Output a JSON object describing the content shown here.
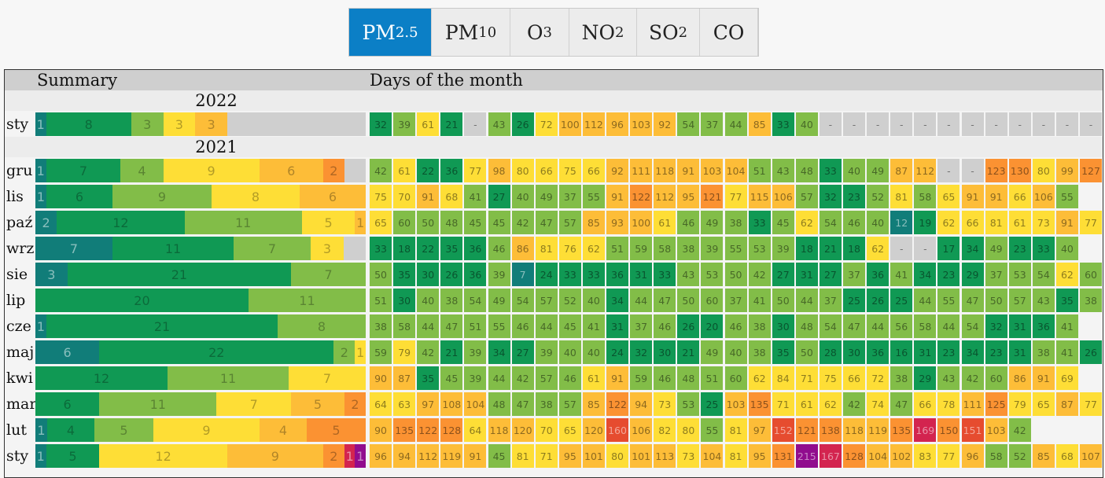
{
  "tabs": [
    {
      "base": "PM",
      "sub": "2.5",
      "active": true
    },
    {
      "base": "PM",
      "sub": "10",
      "active": false
    },
    {
      "base": "O",
      "sub": "3",
      "active": false
    },
    {
      "base": "NO",
      "sub": "2",
      "active": false
    },
    {
      "base": "SO",
      "sub": "2",
      "active": false
    },
    {
      "base": "CO",
      "sub": "",
      "active": false
    }
  ],
  "header": {
    "summary_label": "Summary",
    "days_label": "Days of the month"
  },
  "colors": {
    "very_good": "#117d79",
    "good": "#109954",
    "moderate": "#82bd48",
    "sufficient": "#fede36",
    "bad": "#fdbd38",
    "very_bad": "#fb9232",
    "extreme": "#e64c2f",
    "hazard": "#d3244f",
    "max": "#910c8e",
    "nodata": "#cfcfcf"
  },
  "years": [
    {
      "year": "2022",
      "months": [
        {
          "name": "sty",
          "summary": [
            1,
            8,
            3,
            3,
            3,
            0,
            0,
            0,
            0,
            13
          ],
          "days": [
            32,
            39,
            61,
            21,
            null,
            43,
            26,
            72,
            100,
            112,
            96,
            103,
            92,
            54,
            37,
            44,
            85,
            33,
            40,
            null,
            null,
            null,
            null,
            null,
            null,
            null,
            null,
            null,
            null,
            null,
            null
          ]
        }
      ]
    },
    {
      "year": "2021",
      "months": [
        {
          "name": "gru",
          "summary": [
            1,
            7,
            4,
            9,
            6,
            2,
            0,
            0,
            0,
            2
          ],
          "days": [
            42,
            61,
            22,
            36,
            77,
            98,
            80,
            66,
            75,
            66,
            92,
            111,
            118,
            91,
            103,
            104,
            51,
            43,
            48,
            33,
            40,
            49,
            87,
            112,
            null,
            null,
            123,
            130,
            80,
            99,
            127
          ]
        },
        {
          "name": "lis",
          "summary": [
            1,
            6,
            9,
            8,
            6,
            0,
            0,
            0,
            0,
            0
          ],
          "days": [
            75,
            70,
            91,
            68,
            41,
            27,
            40,
            49,
            37,
            55,
            91,
            122,
            112,
            95,
            121,
            77,
            115,
            106,
            57,
            32,
            23,
            52,
            81,
            58,
            65,
            91,
            91,
            66,
            106,
            55
          ]
        },
        {
          "name": "paź",
          "summary": [
            2,
            12,
            11,
            5,
            1,
            0,
            0,
            0,
            0,
            0
          ],
          "days": [
            65,
            60,
            50,
            48,
            45,
            45,
            42,
            47,
            57,
            85,
            93,
            100,
            61,
            46,
            49,
            38,
            33,
            45,
            62,
            54,
            46,
            40,
            12,
            19,
            62,
            66,
            81,
            61,
            73,
            91,
            77
          ]
        },
        {
          "name": "wrz",
          "summary": [
            7,
            11,
            7,
            3,
            0,
            0,
            0,
            0,
            0,
            2
          ],
          "days": [
            33,
            18,
            22,
            35,
            36,
            46,
            86,
            81,
            76,
            62,
            51,
            59,
            58,
            38,
            39,
            55,
            53,
            39,
            18,
            21,
            18,
            62,
            null,
            null,
            17,
            34,
            49,
            23,
            33,
            40
          ]
        },
        {
          "name": "sie",
          "summary": [
            3,
            21,
            7,
            0,
            0,
            0,
            0,
            0,
            0,
            0
          ],
          "days": [
            50,
            35,
            30,
            26,
            36,
            39,
            7,
            24,
            33,
            33,
            36,
            31,
            33,
            43,
            53,
            50,
            42,
            27,
            31,
            27,
            37,
            36,
            41,
            34,
            23,
            29,
            37,
            53,
            54,
            62,
            60
          ]
        },
        {
          "name": "lip",
          "summary": [
            0,
            20,
            11,
            0,
            0,
            0,
            0,
            0,
            0,
            0
          ],
          "days": [
            51,
            30,
            40,
            38,
            54,
            49,
            54,
            57,
            52,
            40,
            34,
            44,
            47,
            50,
            60,
            37,
            41,
            50,
            44,
            37,
            25,
            26,
            25,
            44,
            55,
            47,
            50,
            57,
            43,
            35,
            38
          ]
        },
        {
          "name": "cze",
          "summary": [
            1,
            21,
            8,
            0,
            0,
            0,
            0,
            0,
            0,
            0
          ],
          "days": [
            38,
            58,
            44,
            47,
            51,
            55,
            46,
            44,
            45,
            41,
            31,
            37,
            46,
            26,
            20,
            46,
            38,
            30,
            48,
            54,
            47,
            44,
            56,
            58,
            44,
            54,
            32,
            31,
            36,
            41
          ]
        },
        {
          "name": "maj",
          "summary": [
            6,
            22,
            2,
            1,
            0,
            0,
            0,
            0,
            0,
            0
          ],
          "days": [
            59,
            79,
            42,
            21,
            39,
            34,
            27,
            39,
            40,
            40,
            24,
            32,
            30,
            21,
            49,
            40,
            38,
            35,
            50,
            28,
            30,
            36,
            16,
            31,
            23,
            34,
            23,
            31,
            38,
            41,
            26
          ]
        },
        {
          "name": "kwi",
          "summary": [
            0,
            12,
            11,
            7,
            0,
            0,
            0,
            0,
            0,
            0
          ],
          "days": [
            90,
            87,
            35,
            45,
            39,
            44,
            42,
            57,
            46,
            61,
            91,
            59,
            46,
            48,
            51,
            60,
            62,
            84,
            71,
            75,
            66,
            72,
            38,
            29,
            43,
            42,
            60,
            86,
            91,
            69
          ]
        },
        {
          "name": "mar",
          "summary": [
            0,
            6,
            11,
            7,
            5,
            2,
            0,
            0,
            0,
            0
          ],
          "days": [
            64,
            63,
            97,
            108,
            104,
            48,
            47,
            38,
            57,
            85,
            122,
            94,
            73,
            53,
            25,
            103,
            135,
            71,
            61,
            62,
            42,
            74,
            47,
            66,
            78,
            111,
            125,
            79,
            65,
            87,
            77
          ]
        },
        {
          "name": "lut",
          "summary": [
            1,
            4,
            5,
            9,
            4,
            5,
            0,
            0,
            0,
            0
          ],
          "days": [
            90,
            135,
            122,
            128,
            64,
            118,
            120,
            70,
            65,
            120,
            160,
            106,
            82,
            80,
            55,
            81,
            97,
            152,
            121,
            138,
            118,
            119,
            135,
            169,
            150,
            151,
            103,
            42
          ]
        },
        {
          "name": "sty",
          "summary": [
            1,
            5,
            0,
            12,
            9,
            2,
            0,
            1,
            1,
            0
          ],
          "days": [
            96,
            94,
            112,
            119,
            91,
            45,
            81,
            71,
            95,
            101,
            80,
            101,
            113,
            73,
            104,
            81,
            95,
            131,
            215,
            167,
            128,
            104,
            102,
            83,
            77,
            96,
            58,
            52,
            85,
            68,
            107
          ]
        }
      ]
    }
  ]
}
